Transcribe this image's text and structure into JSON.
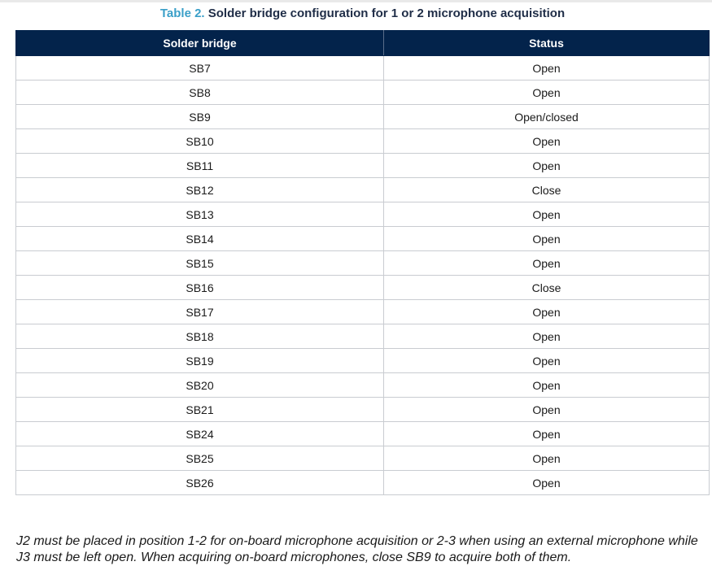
{
  "caption": {
    "number": "Table 2.",
    "title": "Solder bridge configuration for 1 or 2 microphone acquisition"
  },
  "table": {
    "headers": [
      "Solder bridge",
      "Status"
    ],
    "rows": [
      [
        "SB7",
        "Open"
      ],
      [
        "SB8",
        "Open"
      ],
      [
        "SB9",
        "Open/closed"
      ],
      [
        "SB10",
        "Open"
      ],
      [
        "SB11",
        "Open"
      ],
      [
        "SB12",
        "Close"
      ],
      [
        "SB13",
        "Open"
      ],
      [
        "SB14",
        "Open"
      ],
      [
        "SB15",
        "Open"
      ],
      [
        "SB16",
        "Close"
      ],
      [
        "SB17",
        "Open"
      ],
      [
        "SB18",
        "Open"
      ],
      [
        "SB19",
        "Open"
      ],
      [
        "SB20",
        "Open"
      ],
      [
        "SB21",
        "Open"
      ],
      [
        "SB24",
        "Open"
      ],
      [
        "SB25",
        "Open"
      ],
      [
        "SB26",
        "Open"
      ]
    ]
  },
  "note": "J2 must be placed in position 1-2 for on-board microphone acquisition or 2-3 when using an external microphone while J3 must be left open. When acquiring on-board microphones, close SB9 to acquire both of them.",
  "colors": {
    "caption_number": "#3a9fc8",
    "caption_title": "#1f2d47",
    "header_background": "#03234b",
    "header_text": "#ffffff",
    "grid_lines": "#c9ccd1"
  }
}
